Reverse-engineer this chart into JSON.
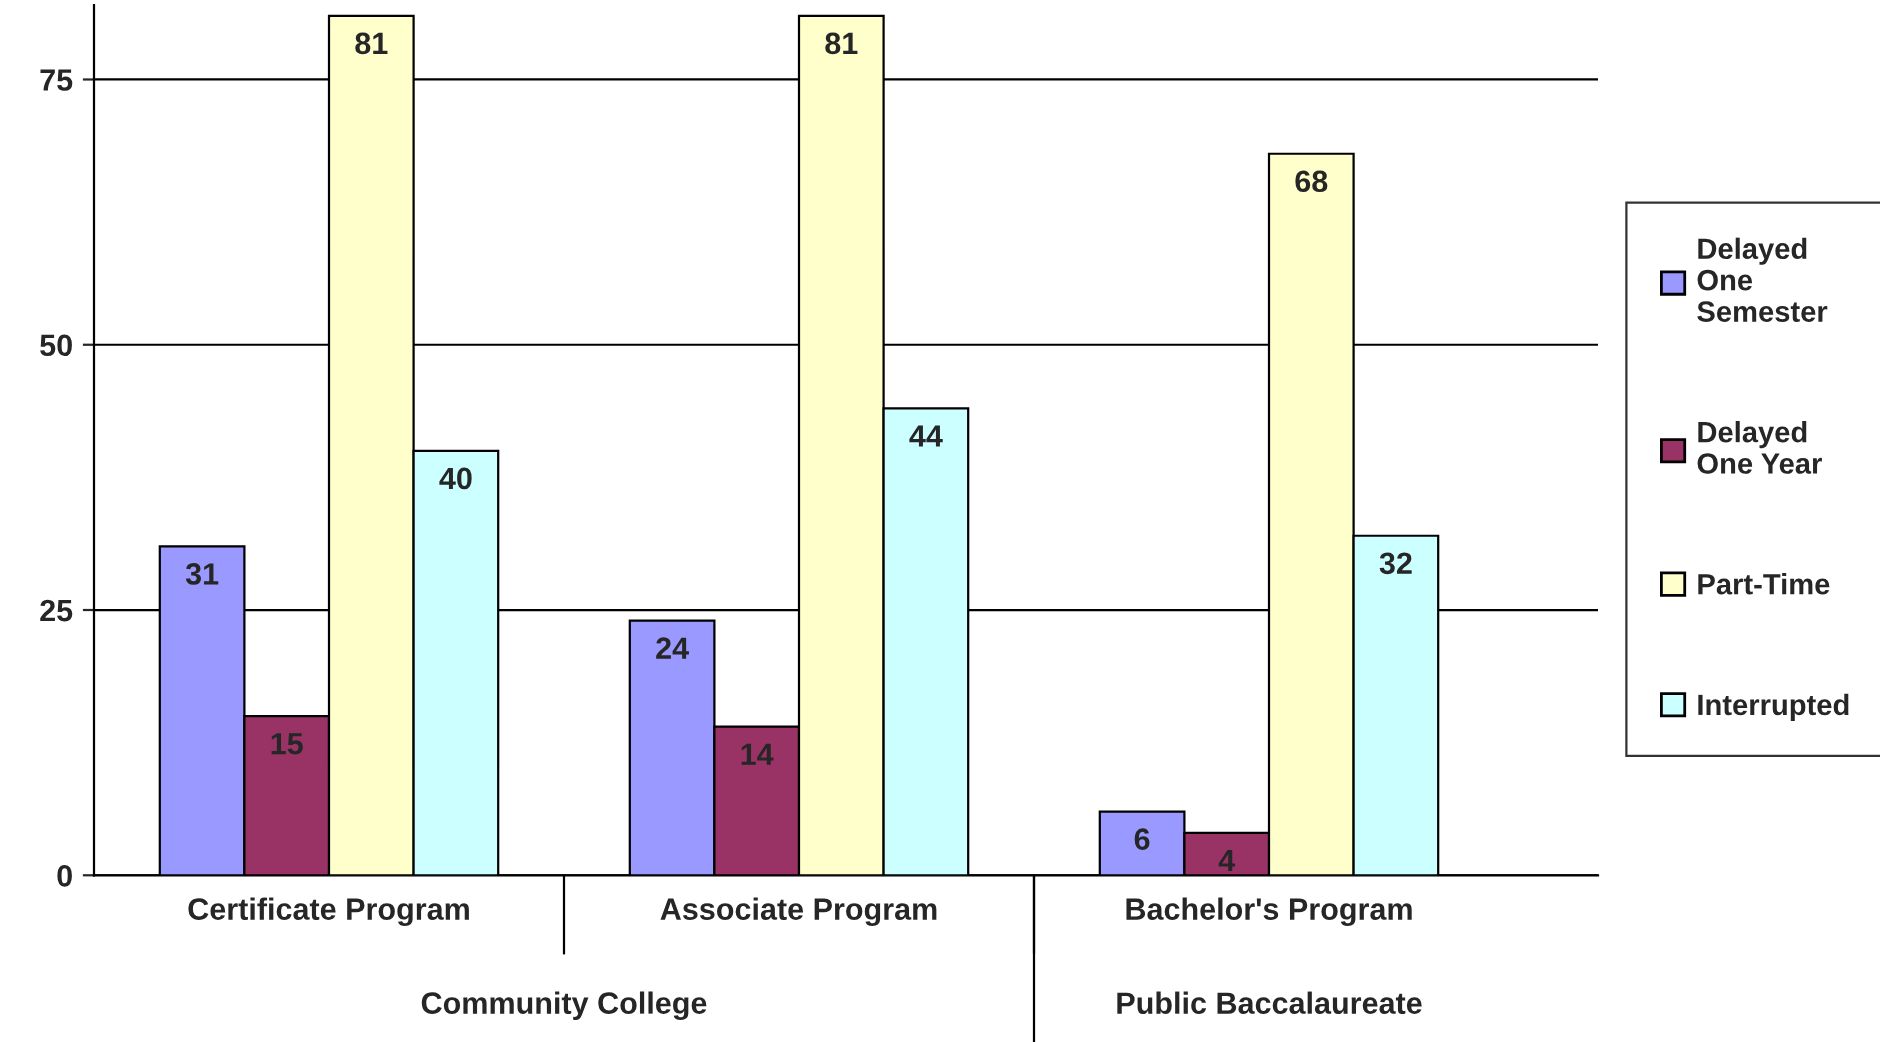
{
  "chart_data": {
    "type": "bar",
    "categories": [
      "Certificate Program",
      "Associate Program",
      "Bachelor's Program"
    ],
    "series": [
      {
        "name": "Delayed One Semester",
        "color": "#9999ff",
        "values": [
          31,
          24,
          6
        ]
      },
      {
        "name": "Delayed One Year",
        "color": "#993366",
        "values": [
          15,
          14,
          4
        ]
      },
      {
        "name": "Part-Time",
        "color": "#ffffcc",
        "values": [
          81,
          81,
          68
        ]
      },
      {
        "name": "Interrupted",
        "color": "#ccffff",
        "values": [
          40,
          44,
          32
        ]
      }
    ],
    "ylim": [
      0,
      82
    ],
    "yticks": [
      0,
      25,
      50,
      75
    ],
    "grid": "y",
    "legend": "right",
    "data_labels": true,
    "annotations": [
      "Community College",
      "Public Baccalaureate"
    ]
  }
}
